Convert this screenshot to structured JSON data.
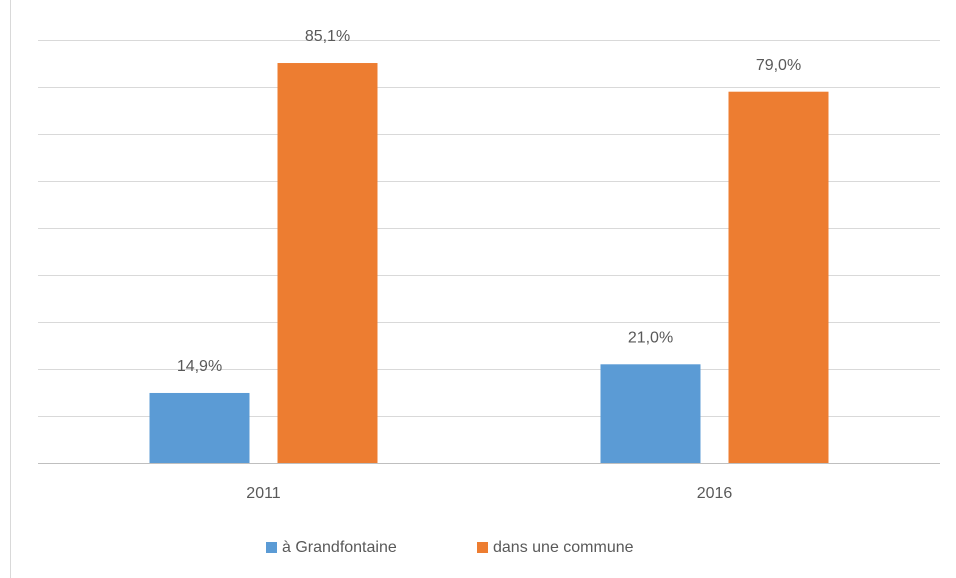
{
  "chart_data": {
    "type": "bar",
    "categories": [
      "2011",
      "2016"
    ],
    "series": [
      {
        "name": "à Grandfontaine",
        "color": "#5b9bd5",
        "values": [
          14.9,
          21.0
        ],
        "value_labels": [
          "14,9%",
          "21,0%"
        ]
      },
      {
        "name": "dans une commune",
        "color": "#ed7d31",
        "values": [
          85.1,
          79.0
        ],
        "value_labels": [
          "85,1%",
          "79,0%"
        ]
      }
    ],
    "ylim": [
      0,
      90
    ],
    "yticks": [
      0,
      10,
      20,
      30,
      40,
      50,
      60,
      70,
      80,
      90
    ],
    "grid": true,
    "legend": "bottom"
  }
}
